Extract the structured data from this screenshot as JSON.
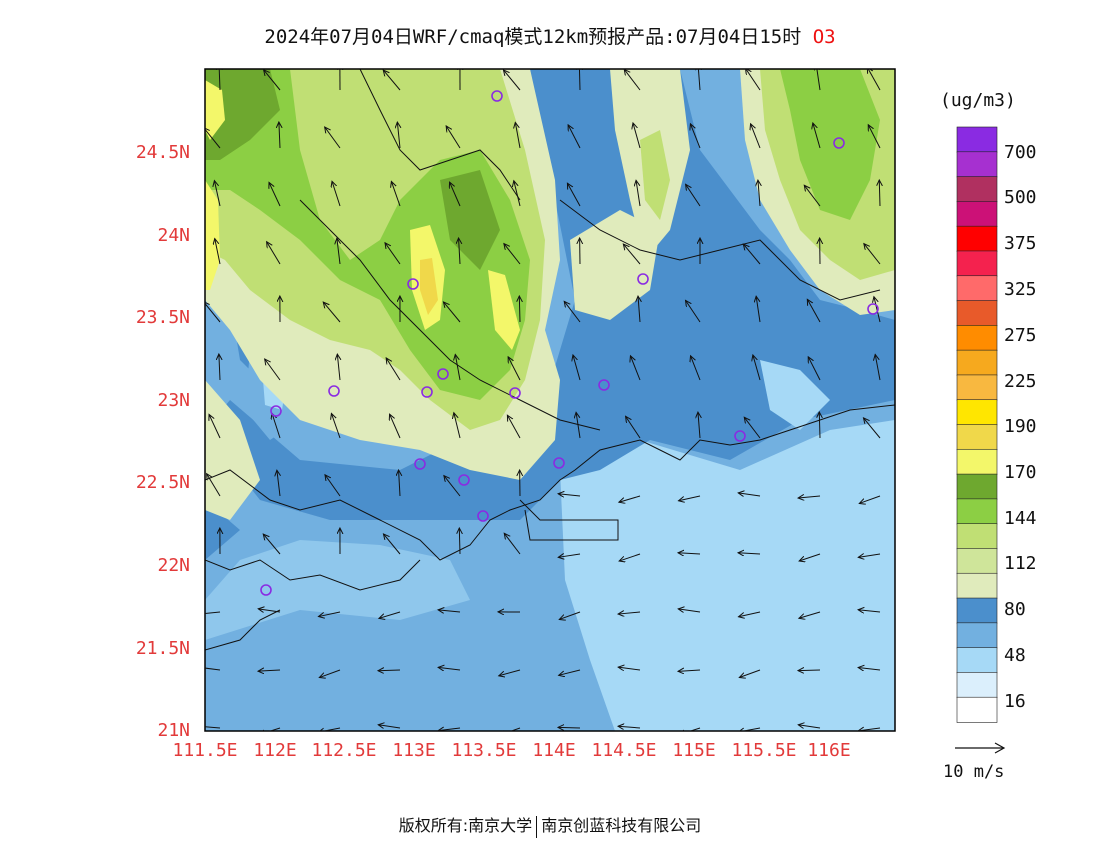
{
  "title": {
    "main": "2024年07月04日WRF/cmaq模式12km预报产品:07月04日15时",
    "species": "O3"
  },
  "axes": {
    "lat_labels": [
      "24.5N",
      "24N",
      "23.5N",
      "23N",
      "22.5N",
      "22N",
      "21.5N",
      "21N"
    ],
    "lon_labels": [
      "111.5E",
      "112E",
      "112.5E",
      "113E",
      "113.5E",
      "114E",
      "114.5E",
      "115E",
      "115.5E",
      "116E"
    ]
  },
  "legend": {
    "unit": "(ug/m3)",
    "labels": [
      "700",
      "500",
      "375",
      "325",
      "275",
      "225",
      "190",
      "170",
      "144",
      "112",
      "80",
      "48",
      "16"
    ],
    "colors": [
      "#8a2be2",
      "#a630d0",
      "#b03060",
      "#cc1177",
      "#ff0000",
      "#f4224e",
      "#ff6a6a",
      "#e85a2a",
      "#ff8c00",
      "#f6a91e",
      "#f8b840",
      "#ffe600",
      "#f0d84a",
      "#f3f76a",
      "#6ea82f",
      "#8ccf44",
      "#c0df74",
      "#cfe59a",
      "#e0ebbc",
      "#4b8fcc",
      "#72b0e0",
      "#a6d9f6",
      "#dbeffc",
      "#ffffff"
    ]
  },
  "wind_scale": {
    "label": "10 m/s"
  },
  "footer": {
    "left": "版权所有:南京大学",
    "right": "南京创蓝科技有限公司"
  }
}
